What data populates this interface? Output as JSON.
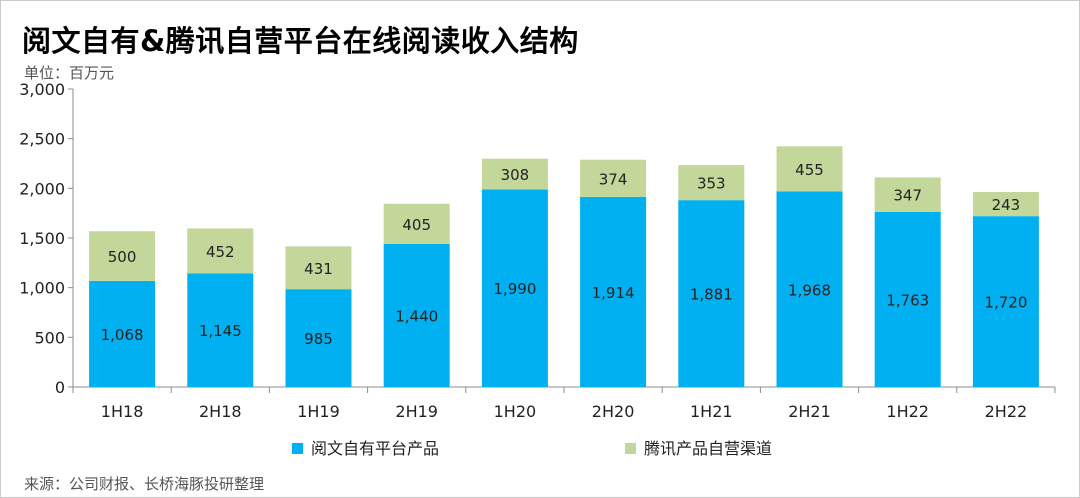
{
  "title": "阅文自有&腾讯自营平台在线阅读收入结构",
  "unit": "单位：百万元",
  "source": "来源：公司财报、长桥海豚投研整理",
  "colors": {
    "series1": "#00B0F0",
    "series2": "#C4D79B"
  },
  "chart_data": {
    "type": "bar",
    "stacked": true,
    "categories": [
      "1H18",
      "2H18",
      "1H19",
      "2H19",
      "1H20",
      "2H20",
      "1H21",
      "2H21",
      "1H22",
      "2H22"
    ],
    "series": [
      {
        "name": "阅文自有平台产品",
        "values": [
          1068,
          1145,
          985,
          1440,
          1990,
          1914,
          1881,
          1968,
          1763,
          1720
        ]
      },
      {
        "name": "腾讯产品自营渠道",
        "values": [
          500,
          452,
          431,
          405,
          308,
          374,
          353,
          455,
          347,
          243
        ]
      }
    ],
    "ylim": [
      0,
      3000
    ],
    "yticks": [
      0,
      500,
      1000,
      1500,
      2000,
      2500,
      3000
    ],
    "ytick_labels": [
      "0",
      "500",
      "1,000",
      "1,500",
      "2,000",
      "2,500",
      "3,000"
    ],
    "grid": false,
    "legend": "bottom"
  }
}
